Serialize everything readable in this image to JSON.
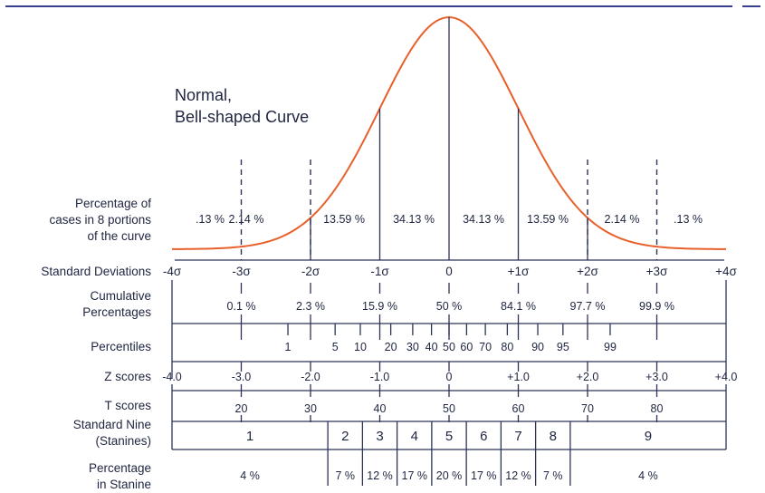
{
  "title_lines": [
    "Normal,",
    "Bell-shaped Curve"
  ],
  "colors": {
    "curve": "#e8602c",
    "lines": "#2c3458",
    "accent_bar": "#3b3f8f"
  },
  "row_labels": {
    "percentage_cases": [
      "Percentage of",
      "cases in 8 portions",
      "of the curve"
    ],
    "standard_deviations": "Standard Deviations",
    "cumulative": [
      "Cumulative",
      "Percentages"
    ],
    "percentiles": "Percentiles",
    "z_scores": "Z scores",
    "t_scores": "T scores",
    "stanines": [
      "Standard Nine",
      "(Stanines)"
    ],
    "percentage_stanine": [
      "Percentage",
      "in Stanine"
    ]
  },
  "portion_percentages": [
    ".13 %",
    "2.14 %",
    "13.59 %",
    "34.13 %",
    "34.13 %",
    "13.59 %",
    "2.14 %",
    ".13 %"
  ],
  "sd_labels": [
    "-4σ",
    "-3σ",
    "-2σ",
    "-1σ",
    "0",
    "+1σ",
    "+2σ",
    "+3σ",
    "+4σ"
  ],
  "cumulative_percentages": [
    "0.1 %",
    "2.3 %",
    "15.9 %",
    "50 %",
    "84.1 %",
    "97.7 %",
    "99.9 %"
  ],
  "percentiles": [
    "1",
    "5",
    "10",
    "20",
    "30",
    "40",
    "50",
    "60",
    "70",
    "80",
    "90",
    "95",
    "99"
  ],
  "z_scores": [
    "-4.0",
    "-3.0",
    "-2.0",
    "-1.0",
    "0",
    "+1.0",
    "+2.0",
    "+3.0",
    "+4.0"
  ],
  "t_scores": [
    "20",
    "30",
    "40",
    "50",
    "60",
    "70",
    "80"
  ],
  "stanines": [
    "1",
    "2",
    "3",
    "4",
    "5",
    "6",
    "7",
    "8",
    "9"
  ],
  "stanine_percentages": [
    "4 %",
    "7 %",
    "12 %",
    "17 %",
    "20 %",
    "17 %",
    "12 %",
    "7 %",
    "4 %"
  ]
}
